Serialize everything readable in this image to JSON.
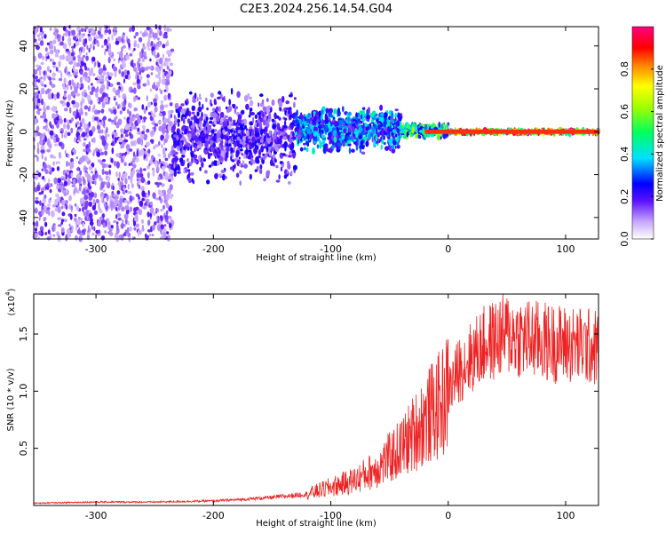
{
  "title": "C2E3.2024.256.14.54.G04",
  "colors": {
    "snr_line": "#ee2222",
    "background": "#ffffff",
    "frame": "#000000"
  },
  "chart_data": [
    {
      "type": "heatmap",
      "name": "spectrogram",
      "title": "C2E3.2024.256.14.54.G04",
      "xlabel": "Height of straight line (km)",
      "ylabel": "Frequency (Hz)",
      "xlim": [
        -353,
        128
      ],
      "ylim": [
        -50,
        49
      ],
      "xticks": [
        -300,
        -200,
        -100,
        0,
        100
      ],
      "yticks": [
        -40,
        -20,
        0,
        20,
        40
      ],
      "colorbar": {
        "label": "Normalized spectral amplitude",
        "range": [
          0,
          1
        ],
        "ticks": [
          "0.0",
          "0.2",
          "0.4",
          "0.6",
          "0.8"
        ],
        "tick_values": [
          0.0,
          0.2,
          0.4,
          0.6,
          0.8
        ],
        "colormap": [
          "#ffffff",
          "#a070ff",
          "#3a00ff",
          "#0000ff",
          "#00ffff",
          "#00ff00",
          "#ffff00",
          "#ff8000",
          "#ff0000",
          "#ff00ff"
        ]
      },
      "regions": [
        {
          "x_range": [
            -353,
            -235
          ],
          "freq_range": [
            -50,
            49
          ],
          "amplitude": 0.15,
          "description": "scattered noise"
        },
        {
          "x_range": [
            -235,
            -130
          ],
          "freq_range": [
            -25,
            20
          ],
          "amplitude": 0.2
        },
        {
          "x_range": [
            -130,
            -40
          ],
          "freq_range": [
            -10,
            12
          ],
          "amplitude": 0.35
        },
        {
          "x_range": [
            -40,
            0
          ],
          "freq_range": [
            -3,
            4
          ],
          "amplitude": 0.5
        },
        {
          "x_range": [
            0,
            128
          ],
          "freq_range": [
            -1,
            1
          ],
          "amplitude": 0.85,
          "description": "carrier line near 0 Hz"
        }
      ]
    },
    {
      "type": "line",
      "name": "snr",
      "xlabel": "Height of straight line (km)",
      "ylabel": "SNR (10 * v/v)",
      "y_multiplier_label": "(x10",
      "y_multiplier_exp": "4",
      "y_multiplier_close": ")",
      "xlim": [
        -353,
        128
      ],
      "ylim": [
        0,
        1.85
      ],
      "xticks": [
        -300,
        -200,
        -100,
        0,
        100
      ],
      "yticks": [
        "0.5",
        "1.0",
        "1.5"
      ],
      "ytick_values": [
        0.5,
        1.0,
        1.5
      ],
      "series": [
        {
          "name": "SNR",
          "x": [
            -353,
            -300,
            -250,
            -200,
            -180,
            -150,
            -120,
            -100,
            -80,
            -60,
            -40,
            -20,
            -5,
            10,
            30,
            50,
            70,
            90,
            110,
            128
          ],
          "y": [
            0.02,
            0.03,
            0.03,
            0.04,
            0.05,
            0.07,
            0.1,
            0.16,
            0.22,
            0.33,
            0.5,
            0.75,
            0.9,
            1.2,
            1.4,
            1.5,
            1.45,
            1.42,
            1.4,
            1.38
          ]
        }
      ]
    }
  ]
}
